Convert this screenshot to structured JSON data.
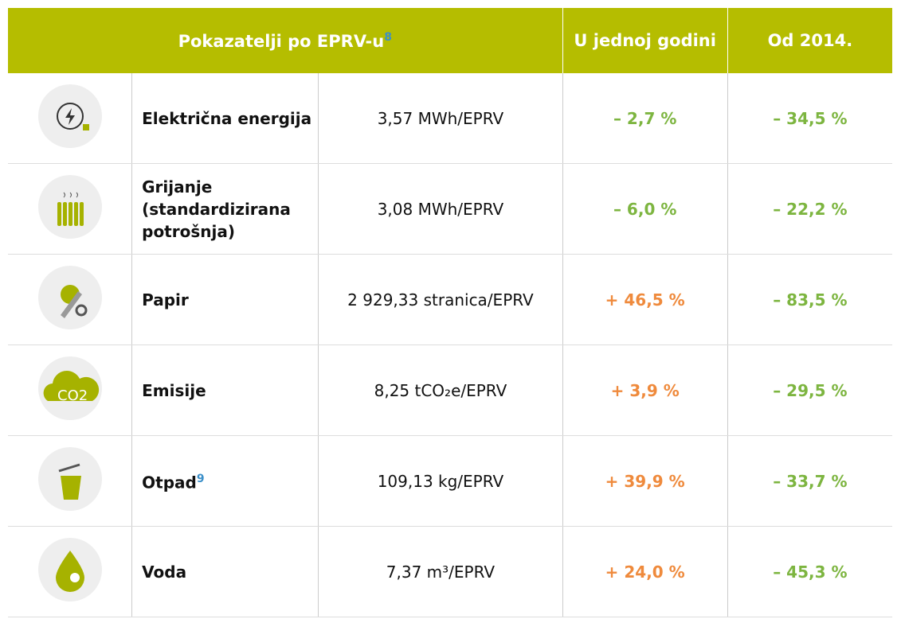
{
  "table": {
    "header": {
      "title": "Pokazatelji po EPRV-u",
      "title_sup": "8",
      "col_year": "U jednoj godini",
      "col_since": "Od 2014."
    },
    "rows": [
      {
        "label": "Električna energija",
        "value": "3,57 MWh/EPRV",
        "year": "– 2,7 %",
        "since": "– 34,5 %"
      },
      {
        "label": "Grijanje (standardizirana potrošnja)",
        "value": "3,08 MWh/EPRV",
        "year": "– 6,0 %",
        "since": "– 22,2 %"
      },
      {
        "label": "Papir",
        "value": "2 929,33 stranica/EPRV",
        "year": "+ 46,5 %",
        "since": "– 83,5 %"
      },
      {
        "label": "Emisije",
        "value": "8,25 tCO₂e/EPRV",
        "year": "+ 3,9 %",
        "since": "– 29,5 %"
      },
      {
        "label": "Otpad",
        "label_sup": "9",
        "value": "109,13 kg/EPRV",
        "year": "+ 39,9 %",
        "since": "– 33,7 %"
      },
      {
        "label": "Voda",
        "value": "7,37 m³/EPRV",
        "year": "+ 24,0 %",
        "since": "– 45,3 %"
      }
    ]
  }
}
